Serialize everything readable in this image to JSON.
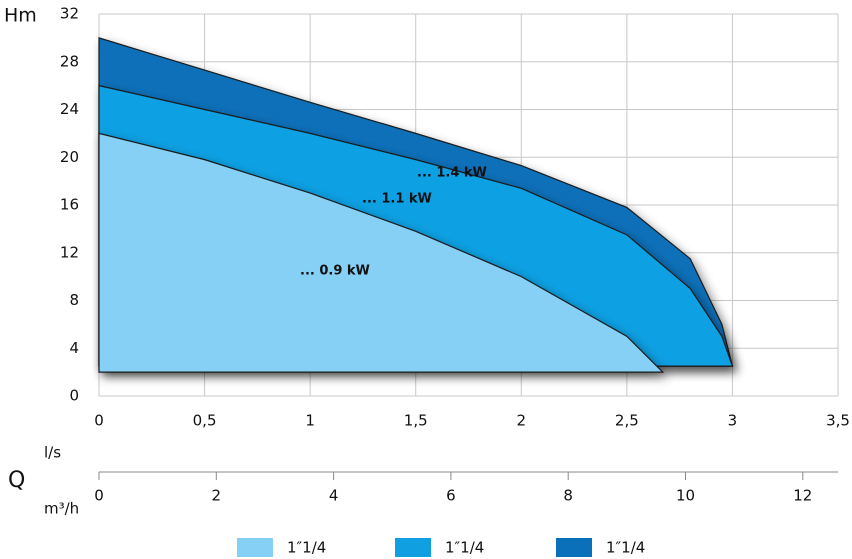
{
  "chart_data": {
    "type": "area",
    "y_label": "Hm",
    "x_label": "l/s",
    "quantity_label": "Q",
    "x2_label": "m³/h",
    "xlim": [
      0,
      3.5
    ],
    "xticks": [
      0,
      {
        "value": 0.5,
        "label": "0,5"
      },
      1,
      {
        "value": 1.5,
        "label": "1,5"
      },
      2,
      {
        "value": 2.5,
        "label": "2,5"
      },
      3,
      {
        "value": 3.5,
        "label": "3,5"
      }
    ],
    "ylim": [
      0,
      32
    ],
    "yticks": [
      0,
      4,
      8,
      12,
      16,
      20,
      24,
      28,
      32
    ],
    "x2lim": [
      0,
      12.6
    ],
    "x2ticks": [
      0,
      2,
      4,
      6,
      8,
      10,
      12
    ],
    "grid": true,
    "series": [
      {
        "name": "1″1/4",
        "color": "#86cff5",
        "annotation": "... 0.9 kW",
        "x": [
          0,
          0.5,
          1,
          1.5,
          2,
          2.5,
          2.67
        ],
        "values": [
          22,
          19.8,
          17,
          13.8,
          10,
          5,
          2
        ]
      },
      {
        "name": "1″1/4",
        "color": "#10a0e2",
        "annotation": "... 1.1 kW",
        "x": [
          0,
          0.5,
          1,
          1.5,
          2,
          2.5,
          2.8,
          2.95,
          3
        ],
        "values": [
          26,
          24,
          22,
          19.8,
          17.4,
          13.5,
          9,
          5,
          2.5
        ]
      },
      {
        "name": "1″1/4",
        "color": "#0a70b9",
        "annotation": "... 1.4 kW",
        "x": [
          0,
          0.5,
          1,
          1.5,
          2,
          2.5,
          2.8,
          2.95,
          3
        ],
        "values": [
          30,
          27.3,
          24.6,
          22,
          19.3,
          15.8,
          11.5,
          6,
          2.5
        ]
      }
    ]
  }
}
